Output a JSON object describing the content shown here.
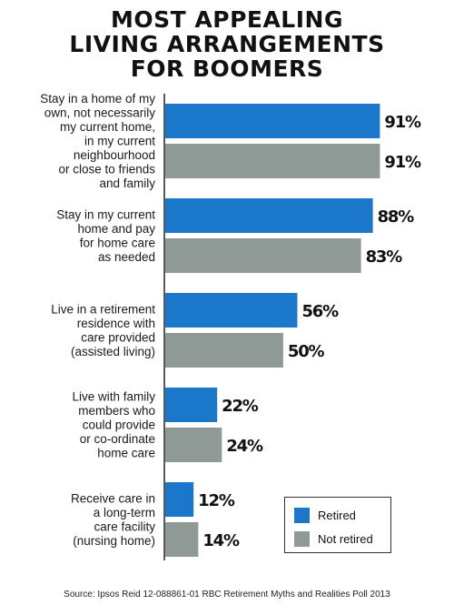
{
  "title_lines": [
    "MOST APPEALING",
    "LIVING ARRANGEMENTS",
    "FOR BOOMERS"
  ],
  "source": "Source: Ipsos Reid  12-088861-01 RBC Retirement Myths and Realities Poll 2013",
  "colors": {
    "retired": "#1a77c9",
    "not_retired": "#8f9a97",
    "axis": "#222222"
  },
  "chart_data": {
    "type": "bar",
    "orientation": "horizontal",
    "title": "MOST APPEALING LIVING ARRANGEMENTS FOR BOOMERS",
    "categories": [
      [
        "Stay in a home of my",
        "own, not necessarily",
        "my current home,",
        "in my current",
        "neighbourhood",
        "or close to friends",
        "and family"
      ],
      [
        "Stay in my current",
        "home and pay",
        "for home care",
        "as needed"
      ],
      [
        "Live in a retirement",
        "residence with",
        "care provided",
        "(assisted living)"
      ],
      [
        "Live with family",
        "members who",
        "could provide",
        "or co-ordinate",
        "home care"
      ],
      [
        "Receive care in",
        "a long-term",
        "care facility",
        "(nursing home)"
      ]
    ],
    "series": [
      {
        "name": "Retired",
        "values": [
          91,
          88,
          56,
          22,
          12
        ],
        "labels": [
          "91%",
          "88%",
          "56%",
          "22%",
          "12%"
        ]
      },
      {
        "name": "Not retired",
        "values": [
          91,
          83,
          50,
          24,
          14
        ],
        "labels": [
          "91%",
          "83%",
          "50%",
          "24%",
          "14%"
        ]
      }
    ],
    "xlim": [
      0,
      100
    ],
    "legend_position": "bottom-right",
    "grid": false
  }
}
